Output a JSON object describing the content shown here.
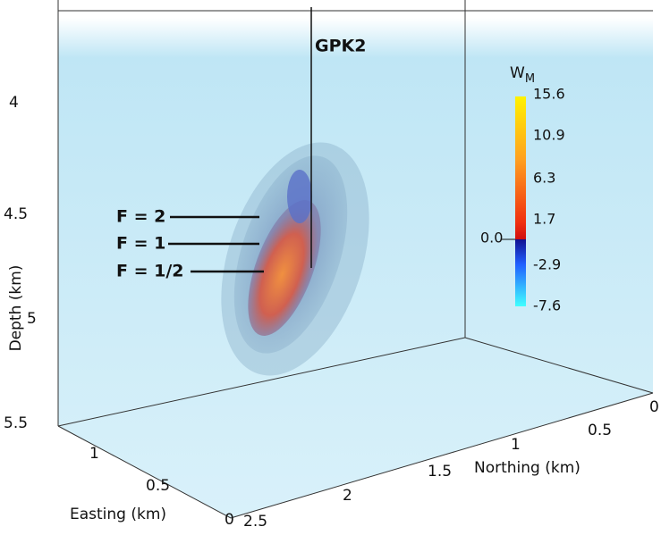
{
  "well_label": "GPK2",
  "colorbar": {
    "title": "W",
    "title_sub": "M",
    "ticks": [
      "15.6",
      "10.9",
      "6.3",
      "1.7",
      "-2.9",
      "-7.6"
    ],
    "zero_label": "0.0"
  },
  "contour_labels": [
    "F = 2",
    "F = 1",
    "F = 1/2"
  ],
  "axes": {
    "depth": {
      "label": "Depth (km)",
      "ticks": [
        "4",
        "4.5",
        "5",
        "5.5"
      ]
    },
    "easting": {
      "label": "Easting (km)",
      "ticks": [
        "1",
        "0.5",
        "0"
      ]
    },
    "northing": {
      "label": "Northing (km)",
      "ticks": [
        "0",
        "0.5",
        "1",
        "1.5",
        "2",
        "2.5"
      ]
    }
  }
}
